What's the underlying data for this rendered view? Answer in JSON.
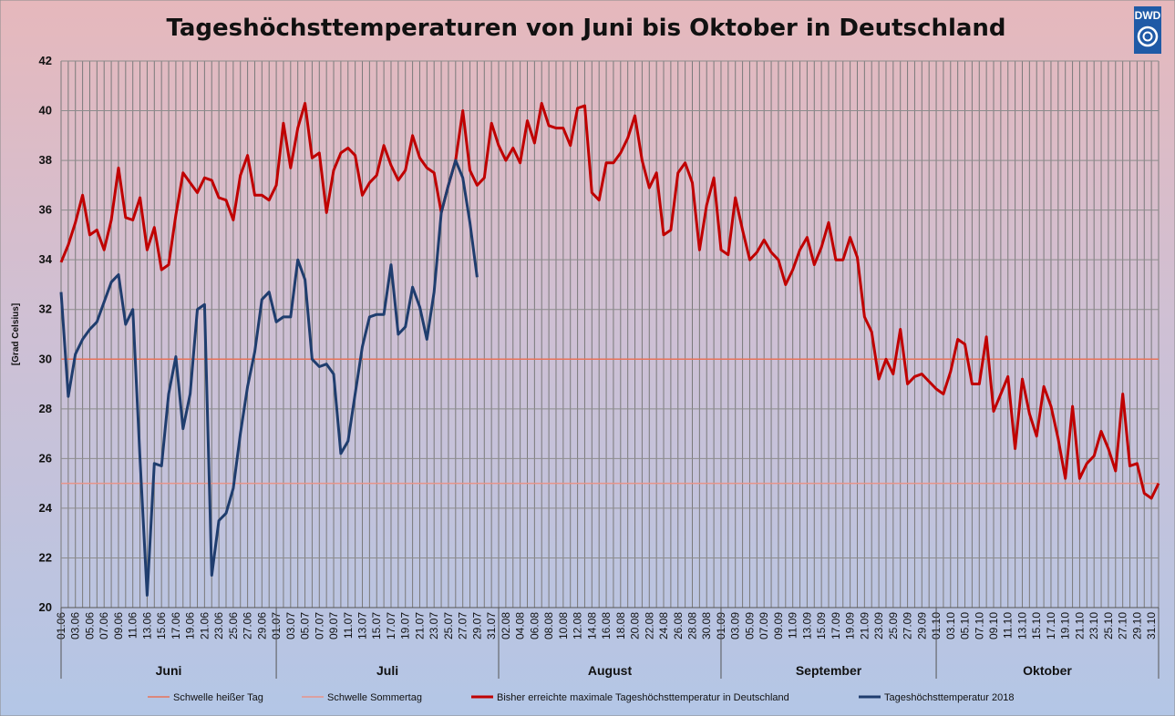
{
  "chart_data": {
    "type": "line",
    "title": "Tageshöchsttemperaturen von Juni bis Oktober in Deutschland",
    "ylabel": "[Grad Celsius]",
    "ylim": [
      20,
      42
    ],
    "yticks": [
      "42",
      "40",
      "38",
      "36",
      "34",
      "32",
      "30",
      "28",
      "26",
      "24",
      "22",
      "20"
    ],
    "grid": true,
    "legend_position": "bottom",
    "logo": "DWD",
    "months": [
      "Juni",
      "Juli",
      "August",
      "September",
      "Oktober"
    ],
    "x_ticks": [
      "01.06",
      "03.06",
      "05.06",
      "07.06",
      "09.06",
      "11.06",
      "13.06",
      "15.06",
      "17.06",
      "19.06",
      "21.06",
      "23.06",
      "25.06",
      "27.06",
      "29.06",
      "01.07",
      "03.07",
      "05.07",
      "07.07",
      "09.07",
      "11.07",
      "13.07",
      "15.07",
      "17.07",
      "19.07",
      "21.07",
      "23.07",
      "25.07",
      "27.07",
      "29.07",
      "31.07",
      "02.08",
      "04.08",
      "06.08",
      "08.08",
      "10.08",
      "12.08",
      "14.08",
      "16.08",
      "18.08",
      "20.08",
      "22.08",
      "24.08",
      "26.08",
      "28.08",
      "30.08",
      "01.09",
      "03.09",
      "05.09",
      "07.09",
      "09.09",
      "11.09",
      "13.09",
      "15.09",
      "17.09",
      "19.09",
      "21.09",
      "23.09",
      "25.09",
      "27.09",
      "29.09",
      "01.10",
      "03.10",
      "05.10",
      "07.10",
      "09.10",
      "11.10",
      "13.10",
      "15.10",
      "17.10",
      "19.10",
      "21.10",
      "23.10",
      "25.10",
      "27.10",
      "29.10",
      "31.10"
    ],
    "thresholds": [
      {
        "name": "Schwelle heißer Tag",
        "value": 30,
        "color": "#e8735a"
      },
      {
        "name": "Schwelle Sommertag",
        "value": 25,
        "color": "#e8948a"
      }
    ],
    "series": [
      {
        "name": "Bisher erreichte maximale Tageshöchsttemperatur in Deutschland",
        "color": "#c00000",
        "values": [
          33.9,
          34.6,
          35.5,
          36.6,
          35.0,
          35.2,
          34.4,
          35.6,
          37.7,
          35.7,
          35.6,
          36.5,
          34.4,
          35.3,
          33.6,
          33.8,
          35.8,
          37.5,
          37.1,
          36.7,
          37.3,
          37.2,
          36.5,
          36.4,
          35.6,
          37.4,
          38.2,
          36.6,
          36.6,
          36.4,
          37.0,
          39.5,
          37.7,
          39.3,
          40.3,
          38.1,
          38.3,
          35.9,
          37.6,
          38.3,
          38.5,
          38.2,
          36.6,
          37.1,
          37.4,
          38.6,
          37.8,
          37.2,
          37.6,
          39.0,
          38.1,
          37.7,
          37.5,
          35.9,
          37.0,
          38.0,
          40.0,
          37.6,
          37.0,
          37.3,
          39.5,
          38.6,
          38.0,
          38.5,
          37.9,
          39.6,
          38.7,
          40.3,
          39.4,
          39.3,
          39.3,
          38.6,
          40.1,
          40.2,
          36.7,
          36.4,
          37.9,
          37.9,
          38.3,
          38.9,
          39.8,
          38.0,
          36.9,
          37.5,
          35.0,
          35.2,
          37.5,
          37.9,
          37.1,
          34.4,
          36.2,
          37.3,
          34.4,
          34.2,
          36.5,
          35.2,
          34.0,
          34.3,
          34.8,
          34.3,
          34.0,
          33.0,
          33.6,
          34.4,
          34.9,
          33.8,
          34.5,
          35.5,
          34.0,
          34.0,
          34.9,
          34.1,
          31.7,
          31.1,
          29.2,
          30.0,
          29.4,
          31.2,
          29.0,
          29.3,
          29.4,
          29.1,
          28.8,
          28.6,
          29.5,
          30.8,
          30.6,
          29.0,
          29.0,
          30.9,
          27.9,
          28.6,
          29.3,
          26.4,
          29.2,
          27.8,
          26.9,
          28.9,
          28.1,
          26.8,
          25.2,
          28.1,
          25.2,
          25.8,
          26.1,
          27.1,
          26.4,
          25.5,
          28.6,
          25.7,
          25.8,
          24.6,
          24.4,
          25.0
        ]
      },
      {
        "name": "Tageshöchsttemperatur 2018",
        "color": "#1f3d6e",
        "values": [
          32.7,
          28.5,
          30.2,
          30.8,
          31.2,
          31.5,
          32.3,
          33.1,
          33.4,
          31.4,
          32.0,
          26.0,
          20.5,
          25.8,
          25.7,
          28.6,
          30.1,
          27.2,
          28.6,
          32.0,
          32.2,
          21.3,
          23.5,
          23.8,
          24.8,
          27.0,
          28.9,
          30.3,
          32.4,
          32.7,
          31.5,
          31.7,
          31.7,
          34.0,
          33.2,
          30.0,
          29.7,
          29.8,
          29.4,
          26.2,
          26.7,
          28.6,
          30.5,
          31.7,
          31.8,
          31.8,
          33.8,
          31.0,
          31.3,
          32.9,
          32.1,
          30.8,
          32.7,
          35.9,
          37.0,
          38.0,
          37.3,
          35.5,
          33.3
        ]
      }
    ]
  }
}
